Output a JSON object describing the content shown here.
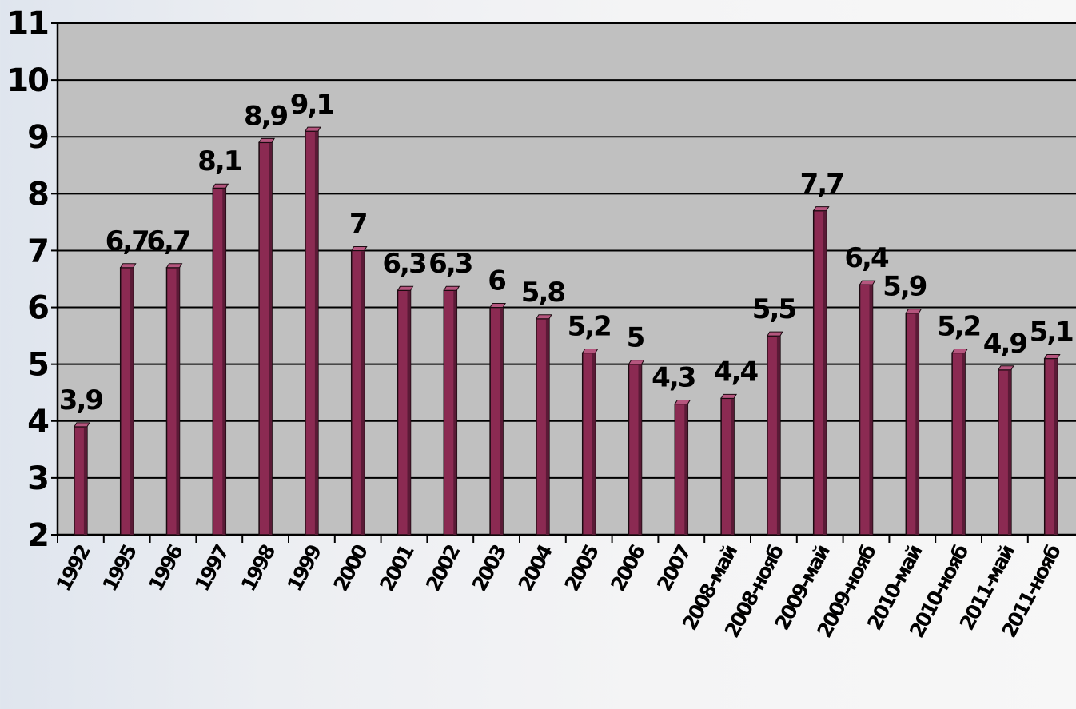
{
  "chart_data": {
    "type": "bar",
    "title": "",
    "xlabel": "",
    "ylabel": "",
    "ylim": [
      2,
      11
    ],
    "yticks": [
      2,
      3,
      4,
      5,
      6,
      7,
      8,
      9,
      10,
      11
    ],
    "grid": true,
    "legend": "none",
    "categories": [
      "1992",
      "1995",
      "1996",
      "1997",
      "1998",
      "1999",
      "2000",
      "2001",
      "2002",
      "2003",
      "2004",
      "2005",
      "2006",
      "2007",
      "2008-май",
      "2008-нояб",
      "2009-май",
      "2009-нояб",
      "2010-май",
      "2010-нояб",
      "2011-май",
      "2011-нояб"
    ],
    "values": [
      3.9,
      6.7,
      6.7,
      8.1,
      8.9,
      9.1,
      7,
      6.3,
      6.3,
      6,
      5.8,
      5.2,
      5,
      4.3,
      4.4,
      5.5,
      7.7,
      6.4,
      5.9,
      5.2,
      4.9,
      5.1
    ],
    "data_labels": [
      "3,9",
      "6,7",
      "6,7",
      "8,1",
      "8,9",
      "9,1",
      "7",
      "6,3",
      "6,3",
      "6",
      "5,8",
      "5,2",
      "5",
      "4,3",
      "4,4",
      "5,5",
      "7,7",
      "6,4",
      "5,9",
      "5,2",
      "4,9",
      "5,1"
    ],
    "colors": {
      "bar": "#8b2a52",
      "bar_side": "#5a1a36",
      "bar_top": "#b5567e",
      "plot_background": "#c0c0c0",
      "gridline": "#000000",
      "text": "#000000"
    }
  }
}
